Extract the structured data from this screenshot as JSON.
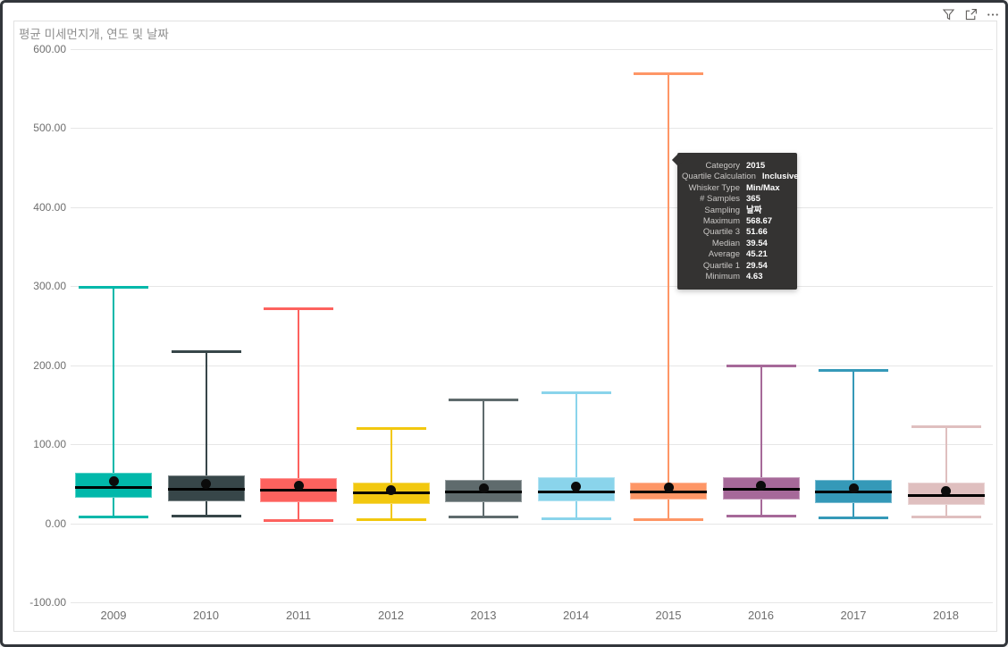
{
  "title": "평균 미세먼지개, 연도 및 날짜",
  "header": {
    "icons": [
      {
        "name": "filter-icon"
      },
      {
        "name": "focus-mode-icon"
      },
      {
        "name": "more-options-icon"
      }
    ]
  },
  "chart_data": {
    "type": "boxplot",
    "title": "평균 미세먼지개, 연도 및 날짜",
    "categories": [
      "2009",
      "2010",
      "2011",
      "2012",
      "2013",
      "2014",
      "2015",
      "2016",
      "2017",
      "2018"
    ],
    "y_axis": {
      "tick_values": [
        600,
        500,
        400,
        300,
        200,
        100,
        0,
        -100
      ],
      "tick_labels": [
        "600.00",
        "500.00",
        "400.00",
        "300.00",
        "200.00",
        "100.00",
        "0.00",
        "-100.00"
      ],
      "range": [
        -100,
        600
      ],
      "grid": true
    },
    "series": [
      {
        "category": "2009",
        "color": "#01B8AA",
        "min": 9,
        "q1": 32,
        "median": 45,
        "average": 53.5,
        "q3": 63.5,
        "max": 299
      },
      {
        "category": "2010",
        "color": "#374649",
        "min": 10,
        "q1": 27.5,
        "median": 43.5,
        "average": 50,
        "q3": 60,
        "max": 217
      },
      {
        "category": "2011",
        "color": "#FD625E",
        "min": 4,
        "q1": 26,
        "median": 42,
        "average": 47,
        "q3": 56.5,
        "max": 272
      },
      {
        "category": "2012",
        "color": "#F2C80F",
        "min": 5,
        "q1": 24,
        "median": 38,
        "average": 41.5,
        "q3": 51,
        "max": 120
      },
      {
        "category": "2013",
        "color": "#5F6B6D",
        "min": 8,
        "q1": 26.5,
        "median": 40,
        "average": 44.5,
        "q3": 54.5,
        "max": 156
      },
      {
        "category": "2014",
        "color": "#8AD4EB",
        "min": 6,
        "q1": 27.5,
        "median": 40,
        "average": 46.5,
        "q3": 58,
        "max": 165
      },
      {
        "category": "2015",
        "color": "#FE9666",
        "min": 4.63,
        "q1": 29.54,
        "median": 39.54,
        "average": 45.21,
        "q3": 51.66,
        "max": 568.67
      },
      {
        "category": "2016",
        "color": "#A66999",
        "min": 10,
        "q1": 30,
        "median": 43.5,
        "average": 48,
        "q3": 58,
        "max": 199
      },
      {
        "category": "2017",
        "color": "#3599B8",
        "min": 7,
        "q1": 25,
        "median": 40,
        "average": 44,
        "q3": 55,
        "max": 194
      },
      {
        "category": "2018",
        "color": "#DFBFBF",
        "min": 9,
        "q1": 23,
        "median": 35,
        "average": 41,
        "q3": 51.5,
        "max": 123
      }
    ]
  },
  "tooltip": {
    "rows": [
      {
        "label": "Category",
        "value": "2015"
      },
      {
        "label": "Quartile Calculation",
        "value": "Inclusive"
      },
      {
        "label": "Whisker Type",
        "value": "Min/Max"
      },
      {
        "label": "# Samples",
        "value": "365"
      },
      {
        "label": "Sampling",
        "value": "날짜"
      },
      {
        "label": "Maximum",
        "value": "568.67"
      },
      {
        "label": "Quartile 3",
        "value": "51.66"
      },
      {
        "label": "Median",
        "value": "39.54"
      },
      {
        "label": "Average",
        "value": "45.21"
      },
      {
        "label": "Quartile 1",
        "value": "29.54"
      },
      {
        "label": "Minimum",
        "value": "4.63"
      }
    ]
  }
}
